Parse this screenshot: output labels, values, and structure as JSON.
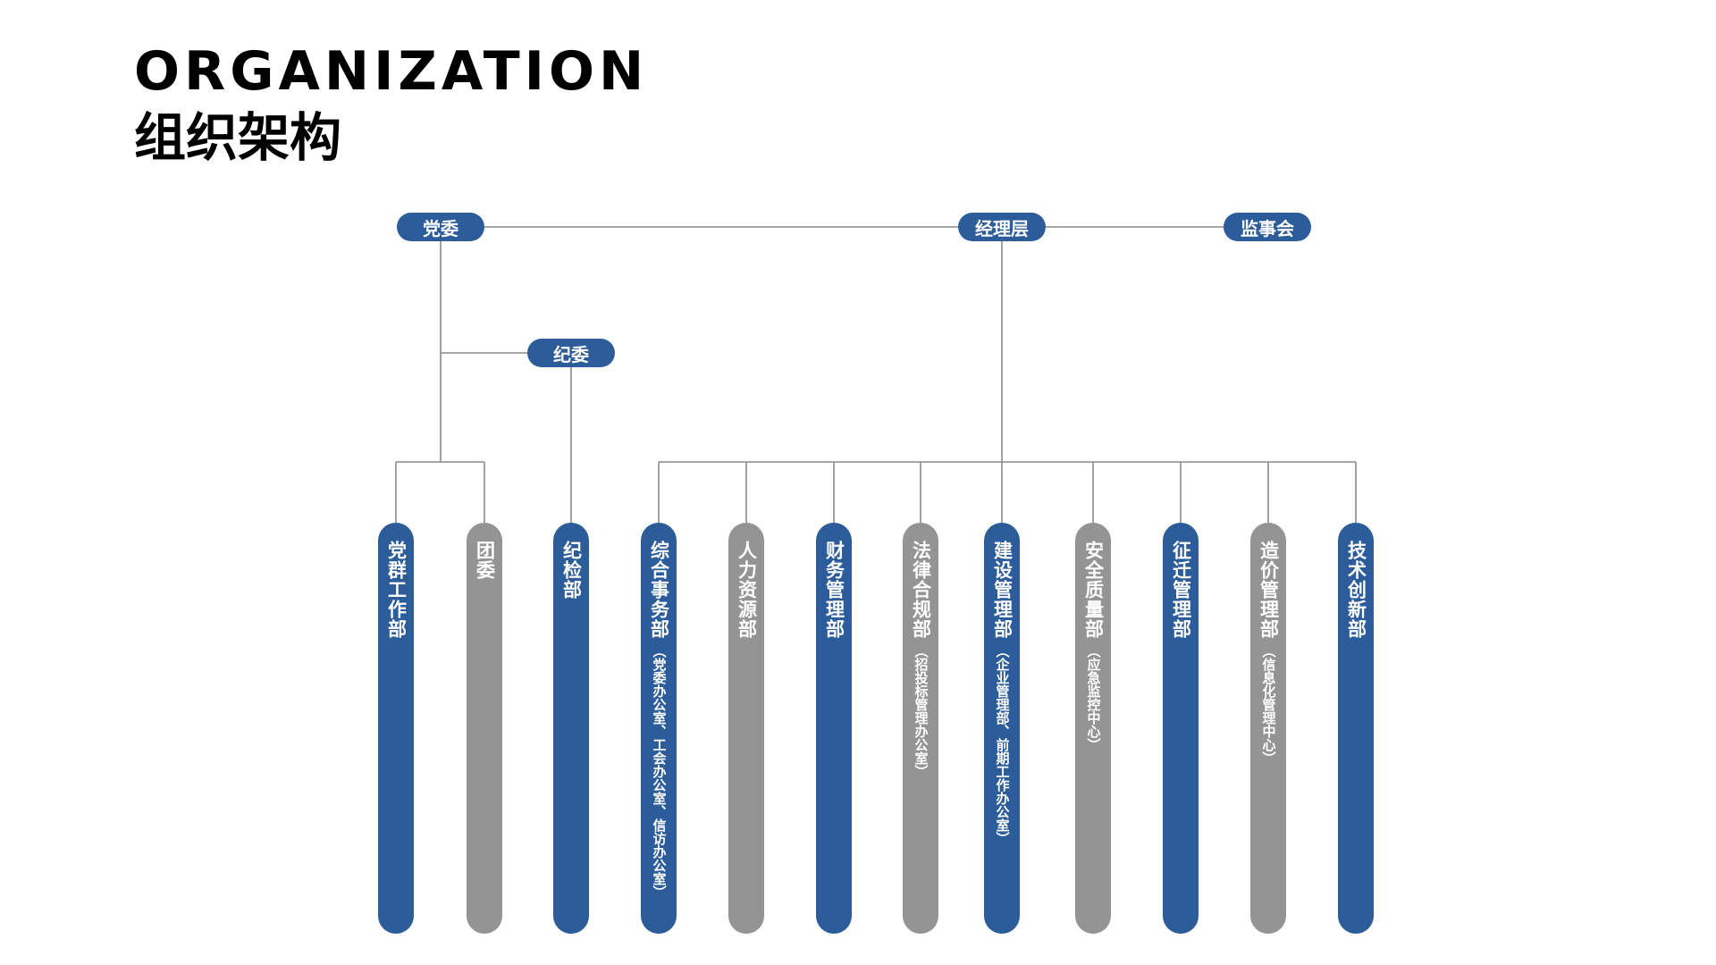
{
  "title": {
    "en": "ORGANIZATION",
    "cn": "组织架构"
  },
  "colors": {
    "blue": "#2c5c9a",
    "gray": "#949494",
    "line": "#8a8a8a"
  },
  "top_nodes": {
    "party": "党委",
    "manager": "经理层",
    "supervisory": "监事会",
    "discipline": "纪委"
  },
  "departments": [
    {
      "main": "党群工作部",
      "sub": "",
      "color": "blue"
    },
    {
      "main": "团委",
      "sub": "",
      "color": "gray"
    },
    {
      "main": "纪检部",
      "sub": "",
      "color": "blue"
    },
    {
      "main": "综合事务部",
      "sub": "（党委办公室、工会办公室、信访办公室）",
      "color": "blue"
    },
    {
      "main": "人力资源部",
      "sub": "",
      "color": "gray"
    },
    {
      "main": "财务管理部",
      "sub": "",
      "color": "blue"
    },
    {
      "main": "法律合规部",
      "sub": "（招投标管理办公室）",
      "color": "gray"
    },
    {
      "main": "建设管理部",
      "sub": "（企业管理部、前期工作办公室）",
      "color": "blue"
    },
    {
      "main": "安全质量部",
      "sub": "（应急监控中心）",
      "color": "gray"
    },
    {
      "main": "征迁管理部",
      "sub": "",
      "color": "blue"
    },
    {
      "main": "造价管理部",
      "sub": "（信息化管理中心）",
      "color": "gray"
    },
    {
      "main": "技术创新部",
      "sub": "",
      "color": "blue"
    }
  ]
}
